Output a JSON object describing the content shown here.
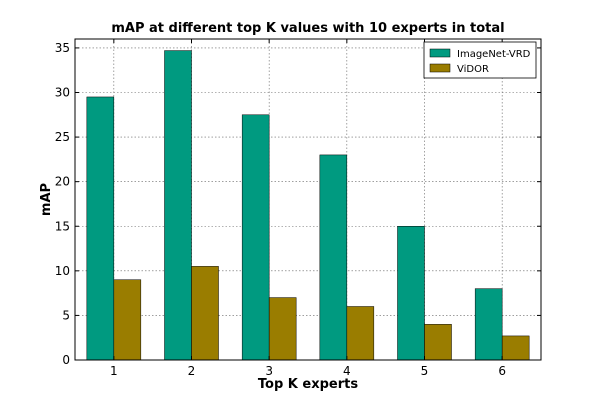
{
  "chart_data": {
    "type": "bar",
    "title": "mAP at different top K values with 10 experts in total",
    "xlabel": "Top K experts",
    "ylabel": "mAP",
    "categories": [
      "1",
      "2",
      "3",
      "4",
      "5",
      "6"
    ],
    "ylim": [
      0,
      36
    ],
    "yticks": [
      "0",
      "5",
      "10",
      "15",
      "20",
      "25",
      "30",
      "35"
    ],
    "grid": true,
    "legend_position": "top-right",
    "series": [
      {
        "name": "ImageNet-VRD",
        "color": "#009a80",
        "values": [
          29.5,
          34.7,
          27.5,
          23.0,
          15.0,
          8.0
        ]
      },
      {
        "name": "ViDOR",
        "color": "#9a7d00",
        "values": [
          9.0,
          10.5,
          7.0,
          6.0,
          4.0,
          2.7
        ]
      }
    ]
  }
}
